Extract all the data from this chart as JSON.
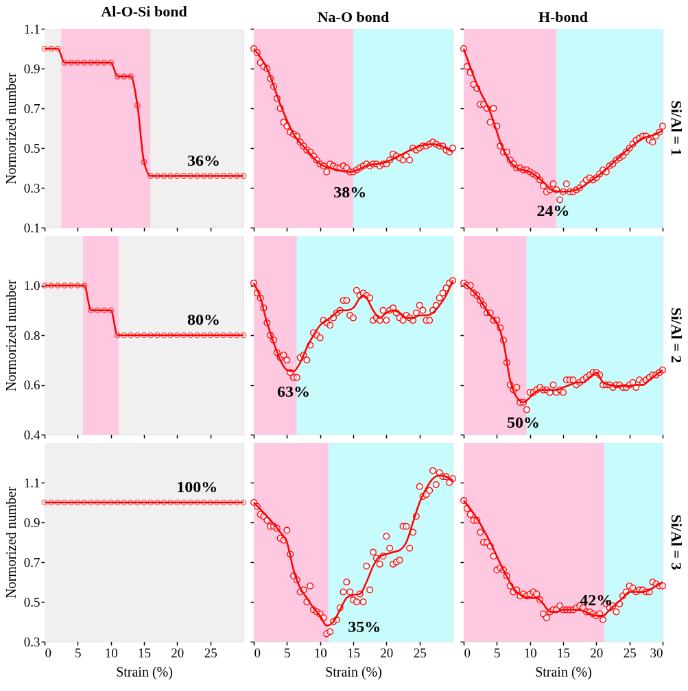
{
  "chart_data": [
    {
      "type": "line",
      "title": "Al-O-Si bond",
      "ylabel": "Normorized number",
      "tick_labels": "y",
      "xlim": [
        0,
        30
      ],
      "ylim": [
        0.1,
        1.1
      ],
      "xticks": [
        0,
        5,
        10,
        15,
        20,
        25
      ],
      "yticks": [
        0.1,
        0.3,
        0.5,
        0.7,
        0.9,
        1.1
      ],
      "bands": [
        {
          "axis": "x",
          "from": 0,
          "to": 2.5,
          "color": "#f0f0f0"
        },
        {
          "axis": "x",
          "from": 2.5,
          "to": 16,
          "color": "#ffc8e1"
        },
        {
          "axis": "x",
          "from": 16,
          "to": 30,
          "color": "#f0f0f0"
        }
      ],
      "x": [
        0,
        1,
        2,
        3,
        4,
        5,
        6,
        7,
        8,
        9,
        10,
        11,
        12,
        13,
        14,
        15,
        16,
        17,
        18,
        19,
        20,
        21,
        22,
        23,
        24,
        25,
        26,
        27,
        28,
        29,
        30
      ],
      "series": [
        {
          "color": "#ff0000",
          "marker": "circle",
          "values": [
            1.0,
            1.0,
            1.0,
            0.93,
            0.93,
            0.93,
            0.93,
            0.93,
            0.93,
            0.93,
            0.93,
            0.86,
            0.86,
            0.86,
            0.715,
            0.43,
            0.36,
            0.36,
            0.36,
            0.36,
            0.36,
            0.36,
            0.36,
            0.36,
            0.36,
            0.36,
            0.36,
            0.36,
            0.36,
            0.36,
            0.36
          ]
        }
      ],
      "annotations": [
        {
          "text": "36%",
          "x": 24,
          "y": 0.36
        }
      ]
    },
    {
      "type": "line",
      "title": "Na-O bond",
      "tick_labels": false,
      "xlim": [
        0,
        30
      ],
      "ylim": [
        0.1,
        1.1
      ],
      "xticks": [
        0,
        5,
        10,
        15,
        20,
        25
      ],
      "yticks": [
        0.1,
        0.3,
        0.5,
        0.7,
        0.9,
        1.1
      ],
      "bands": [
        {
          "axis": "x",
          "from": 0,
          "to": 15,
          "color": "#ffc8e1"
        },
        {
          "axis": "x",
          "from": 15,
          "to": 30,
          "color": "#c8fcfc"
        }
      ],
      "x": [
        0,
        0.5,
        1,
        1.5,
        2,
        2.5,
        3,
        3.5,
        4,
        4.5,
        5,
        5.5,
        6,
        6.5,
        7,
        7.5,
        8,
        8.5,
        9,
        9.5,
        10,
        10.5,
        11,
        11.5,
        12,
        12.5,
        13,
        13.5,
        14,
        14.5,
        15,
        15.5,
        16,
        16.5,
        17,
        17.5,
        18,
        18.5,
        19,
        19.5,
        20,
        20.5,
        21,
        21.5,
        22,
        22.5,
        23,
        23.5,
        24,
        24.5,
        25,
        25.5,
        26,
        26.5,
        27,
        27.5,
        28,
        28.5,
        29,
        29.5,
        30
      ],
      "series": [
        {
          "type": "scatter",
          "color": "#ff0000",
          "marker": "circle",
          "values": [
            1.0,
            0.98,
            0.93,
            0.91,
            0.9,
            0.85,
            0.81,
            0.75,
            0.7,
            0.63,
            0.61,
            0.58,
            0.57,
            0.56,
            0.53,
            0.51,
            0.49,
            0.48,
            0.46,
            0.44,
            0.42,
            0.41,
            0.38,
            0.42,
            0.41,
            0.4,
            0.4,
            0.41,
            0.4,
            0.38,
            0.38,
            0.39,
            0.4,
            0.41,
            0.42,
            0.41,
            0.42,
            0.42,
            0.41,
            0.42,
            0.42,
            0.44,
            0.47,
            0.46,
            0.45,
            0.44,
            0.46,
            0.44,
            0.5,
            0.49,
            0.5,
            0.51,
            0.51,
            0.52,
            0.53,
            0.52,
            0.51,
            0.51,
            0.49,
            0.48,
            0.5
          ]
        },
        {
          "color": "#ff0000",
          "x": [
            0,
            2,
            4,
            6,
            8,
            10,
            12,
            14.5,
            17,
            20,
            23,
            25,
            27,
            30
          ],
          "values": [
            1.0,
            0.9,
            0.72,
            0.57,
            0.49,
            0.42,
            0.395,
            0.38,
            0.41,
            0.43,
            0.48,
            0.51,
            0.52,
            0.48
          ]
        }
      ],
      "annotations": [
        {
          "text": "38%",
          "x": 14.5,
          "y": 0.38
        }
      ]
    },
    {
      "type": "line",
      "title": "H-bond",
      "tick_labels": false,
      "xlim": [
        0,
        30
      ],
      "ylim": [
        0.1,
        1.1
      ],
      "xticks": [
        0,
        5,
        10,
        15,
        20,
        25,
        30
      ],
      "yticks": [
        0.1,
        0.3,
        0.5,
        0.7,
        0.9,
        1.1
      ],
      "bands": [
        {
          "axis": "x",
          "from": 0,
          "to": 14,
          "color": "#ffc8e1"
        },
        {
          "axis": "x",
          "from": 14,
          "to": 30,
          "color": "#c8fcfc"
        }
      ],
      "x": [
        0,
        0.5,
        1,
        1.5,
        2,
        2.5,
        3,
        3.5,
        4,
        4.5,
        5,
        5.5,
        6,
        6.5,
        7,
        7.5,
        8,
        8.5,
        9,
        9.5,
        10,
        10.5,
        11,
        11.5,
        12,
        12.5,
        13,
        13.5,
        14,
        14.5,
        15,
        15.5,
        16,
        16.5,
        17,
        17.5,
        18,
        18.5,
        19,
        19.5,
        20,
        20.5,
        21,
        21.5,
        22,
        22.5,
        23,
        23.5,
        24,
        24.5,
        25,
        25.5,
        26,
        26.5,
        27,
        27.5,
        28,
        28.5,
        29,
        29.5,
        30
      ],
      "series": [
        {
          "type": "scatter",
          "color": "#ff0000",
          "marker": "circle",
          "values": [
            1.0,
            0.91,
            0.88,
            0.82,
            0.8,
            0.72,
            0.72,
            0.7,
            0.63,
            0.7,
            0.61,
            0.51,
            0.48,
            0.48,
            0.44,
            0.42,
            0.4,
            0.4,
            0.39,
            0.39,
            0.38,
            0.37,
            0.36,
            0.34,
            0.31,
            0.28,
            0.29,
            0.32,
            0.29,
            0.24,
            0.28,
            0.32,
            0.28,
            0.28,
            0.29,
            0.3,
            0.32,
            0.34,
            0.35,
            0.34,
            0.35,
            0.37,
            0.39,
            0.38,
            0.41,
            0.42,
            0.44,
            0.45,
            0.46,
            0.48,
            0.5,
            0.52,
            0.54,
            0.55,
            0.56,
            0.56,
            0.54,
            0.53,
            0.56,
            0.58,
            0.61
          ]
        },
        {
          "color": "#ff0000",
          "x": [
            0,
            2,
            4,
            6,
            8,
            10,
            12,
            13.5,
            15,
            17,
            19,
            21,
            23,
            25,
            27,
            29,
            30
          ],
          "values": [
            1.0,
            0.82,
            0.68,
            0.49,
            0.4,
            0.38,
            0.33,
            0.285,
            0.28,
            0.29,
            0.33,
            0.38,
            0.44,
            0.5,
            0.55,
            0.57,
            0.59
          ]
        }
      ],
      "annotations": [
        {
          "text": "24%",
          "x": 13.5,
          "y": 0.285
        },
        "Si/Al = 1"
      ]
    },
    {
      "type": "line",
      "ylabel": "Normorized number",
      "tick_labels": "y",
      "xlim": [
        0,
        30
      ],
      "ylim": [
        0.4,
        1.2
      ],
      "xticks": [
        0,
        5,
        10,
        15,
        20,
        25
      ],
      "yticks": [
        0.4,
        0.6,
        0.8,
        {
          "value": 1.0,
          "label": "1.0"
        }
      ],
      "bands": [
        {
          "axis": "x",
          "from": 0,
          "to": 5.8,
          "color": "#f0f0f0"
        },
        {
          "axis": "x",
          "from": 5.8,
          "to": 11.2,
          "color": "#ffc8e1"
        },
        {
          "axis": "x",
          "from": 11.2,
          "to": 30,
          "color": "#f0f0f0"
        }
      ],
      "x": [
        0,
        1,
        2,
        3,
        4,
        5,
        6,
        7,
        8,
        9,
        10,
        11,
        12,
        13,
        14,
        15,
        16,
        17,
        18,
        19,
        20,
        21,
        22,
        23,
        24,
        25,
        26,
        27,
        28,
        29,
        30
      ],
      "series": [
        {
          "color": "#ff0000",
          "marker": "circle",
          "values": [
            1.0,
            1.0,
            1.0,
            1.0,
            1.0,
            1.0,
            1.0,
            0.9,
            0.9,
            0.9,
            0.9,
            0.8,
            0.8,
            0.8,
            0.8,
            0.8,
            0.8,
            0.8,
            0.8,
            0.8,
            0.8,
            0.8,
            0.8,
            0.8,
            0.8,
            0.8,
            0.8,
            0.8,
            0.8,
            0.8,
            0.8
          ]
        }
      ],
      "annotations": [
        {
          "text": "80%",
          "x": 24,
          "y": 0.8
        }
      ]
    },
    {
      "type": "line",
      "tick_labels": false,
      "xlim": [
        0,
        30
      ],
      "ylim": [
        0.4,
        1.2
      ],
      "xticks": [
        0,
        5,
        10,
        15,
        20,
        25
      ],
      "yticks": [
        0.4,
        0.6,
        0.8,
        1.0
      ],
      "bands": [
        {
          "axis": "x",
          "from": 0,
          "to": 6.5,
          "color": "#ffc8e1"
        },
        {
          "axis": "x",
          "from": 6.5,
          "to": 30,
          "color": "#c8fcfc"
        }
      ],
      "x": [
        0,
        0.5,
        1,
        1.5,
        2,
        2.5,
        3,
        3.5,
        4,
        4.5,
        5,
        5.5,
        6,
        6.5,
        7,
        7.5,
        8,
        8.5,
        9,
        9.5,
        10,
        10.5,
        11,
        11.5,
        12,
        12.5,
        13,
        13.5,
        14,
        14.5,
        15,
        15.5,
        16,
        16.5,
        17,
        17.5,
        18,
        18.5,
        19,
        19.5,
        20,
        20.5,
        21,
        21.5,
        22,
        22.5,
        23,
        23.5,
        24,
        24.5,
        25,
        25.5,
        26,
        26.5,
        27,
        27.5,
        28,
        28.5,
        29,
        29.5,
        30
      ],
      "series": [
        {
          "type": "scatter",
          "color": "#ff0000",
          "marker": "circle",
          "values": [
            1.01,
            0.97,
            0.95,
            0.91,
            0.85,
            0.8,
            0.78,
            0.73,
            0.71,
            0.72,
            0.7,
            0.65,
            0.63,
            0.63,
            0.71,
            0.72,
            0.7,
            0.76,
            0.81,
            0.8,
            0.79,
            0.86,
            0.85,
            0.84,
            0.87,
            0.89,
            0.9,
            0.94,
            0.94,
            0.88,
            0.87,
            0.98,
            0.96,
            0.97,
            0.96,
            0.95,
            0.86,
            0.87,
            0.86,
            0.9,
            0.86,
            0.9,
            0.91,
            0.89,
            0.87,
            0.86,
            0.88,
            0.87,
            0.86,
            0.89,
            0.92,
            0.9,
            0.86,
            0.86,
            0.9,
            0.92,
            0.95,
            0.97,
            0.99,
            1.01,
            1.02
          ]
        },
        {
          "color": "#ff0000",
          "x": [
            0,
            1,
            2,
            3,
            4,
            5,
            6,
            7,
            8,
            9,
            10,
            11,
            12,
            13,
            14,
            15,
            16,
            16.5,
            17,
            18,
            19,
            20,
            21,
            22,
            23,
            24,
            25,
            26,
            27,
            28,
            29,
            30
          ],
          "values": [
            1.01,
            0.95,
            0.85,
            0.77,
            0.7,
            0.66,
            0.655,
            0.69,
            0.75,
            0.8,
            0.84,
            0.86,
            0.88,
            0.9,
            0.9,
            0.91,
            0.95,
            0.96,
            0.95,
            0.9,
            0.87,
            0.89,
            0.9,
            0.89,
            0.87,
            0.87,
            0.88,
            0.88,
            0.89,
            0.92,
            0.96,
            1.02
          ]
        }
      ],
      "annotations": [
        {
          "text": "63%",
          "x": 6,
          "y": 0.655
        }
      ]
    },
    {
      "type": "line",
      "tick_labels": false,
      "xlim": [
        0,
        30
      ],
      "ylim": [
        0.4,
        1.2
      ],
      "xticks": [
        0,
        5,
        10,
        15,
        20,
        25,
        30
      ],
      "yticks": [
        0.4,
        0.6,
        0.8,
        1.0
      ],
      "bands": [
        {
          "axis": "x",
          "from": 0,
          "to": 9.5,
          "color": "#ffc8e1"
        },
        {
          "axis": "x",
          "from": 9.5,
          "to": 30,
          "color": "#c8fcfc"
        }
      ],
      "x": [
        0,
        0.5,
        1,
        1.5,
        2,
        2.5,
        3,
        3.5,
        4,
        4.5,
        5,
        5.5,
        6,
        6.5,
        7,
        7.5,
        8,
        8.5,
        9,
        9.5,
        10,
        10.5,
        11,
        11.5,
        12,
        12.5,
        13,
        13.5,
        14,
        14.5,
        15,
        15.5,
        16,
        16.5,
        17,
        17.5,
        18,
        18.5,
        19,
        19.5,
        20,
        20.5,
        21,
        21.5,
        22,
        22.5,
        23,
        23.5,
        24,
        24.5,
        25,
        25.5,
        26,
        26.5,
        27,
        27.5,
        28,
        28.5,
        29,
        29.5,
        30
      ],
      "series": [
        {
          "type": "scatter",
          "color": "#ff0000",
          "marker": "circle",
          "values": [
            1.01,
            1.0,
            1.0,
            0.97,
            0.96,
            0.94,
            0.92,
            0.89,
            0.89,
            0.86,
            0.86,
            0.83,
            0.78,
            0.69,
            0.6,
            0.58,
            0.59,
            0.53,
            0.53,
            0.5,
            0.57,
            0.57,
            0.58,
            0.59,
            0.58,
            0.58,
            0.57,
            0.6,
            0.57,
            0.58,
            0.57,
            0.62,
            0.62,
            0.62,
            0.6,
            0.61,
            0.62,
            0.63,
            0.64,
            0.65,
            0.65,
            0.64,
            0.6,
            0.6,
            0.6,
            0.59,
            0.6,
            0.6,
            0.59,
            0.59,
            0.6,
            0.61,
            0.59,
            0.62,
            0.61,
            0.62,
            0.63,
            0.64,
            0.64,
            0.65,
            0.66
          ]
        },
        {
          "color": "#ff0000",
          "x": [
            0,
            2,
            4,
            5,
            6,
            7,
            8,
            9,
            10,
            11,
            12,
            13,
            14,
            15,
            16,
            17,
            18,
            19,
            20,
            21,
            22,
            23,
            24,
            25,
            26,
            27,
            28,
            29,
            30
          ],
          "values": [
            1.01,
            0.96,
            0.88,
            0.85,
            0.77,
            0.62,
            0.55,
            0.53,
            0.55,
            0.575,
            0.58,
            0.58,
            0.58,
            0.59,
            0.6,
            0.61,
            0.61,
            0.63,
            0.65,
            0.61,
            0.6,
            0.595,
            0.595,
            0.595,
            0.6,
            0.6,
            0.62,
            0.64,
            0.66
          ]
        }
      ],
      "annotations": [
        {
          "text": "50%",
          "x": 9,
          "y": 0.53
        },
        "Si/Al = 2"
      ]
    },
    {
      "type": "line",
      "xlabel": "Strain (%)",
      "ylabel": "Normorized number",
      "xlim": [
        0,
        30
      ],
      "ylim": [
        0.3,
        1.3
      ],
      "xticks": [
        0,
        5,
        10,
        15,
        20,
        25
      ],
      "yticks": [
        0.3,
        0.5,
        0.7,
        0.9,
        1.1
      ],
      "bands": [
        {
          "axis": "x",
          "from": 0,
          "to": 30,
          "color": "#f0f0f0"
        }
      ],
      "x": [
        0,
        1,
        2,
        3,
        4,
        5,
        6,
        7,
        8,
        9,
        10,
        11,
        12,
        13,
        14,
        15,
        16,
        17,
        18,
        19,
        20,
        21,
        22,
        23,
        24,
        25,
        26,
        27,
        28,
        29,
        30
      ],
      "series": [
        {
          "color": "#ff0000",
          "marker": "circle",
          "values": [
            1.0,
            1.0,
            1.0,
            1.0,
            1.0,
            1.0,
            1.0,
            1.0,
            1.0,
            1.0,
            1.0,
            1.0,
            1.0,
            1.0,
            1.0,
            1.0,
            1.0,
            1.0,
            1.0,
            1.0,
            1.0,
            1.0,
            1.0,
            1.0,
            1.0,
            1.0,
            1.0,
            1.0,
            1.0,
            1.0,
            1.0
          ]
        }
      ],
      "annotations": [
        {
          "text": "100%",
          "x": 23,
          "y": 1.0
        }
      ]
    },
    {
      "type": "line",
      "xlabel": "Strain (%)",
      "tick_labels": "x",
      "xlim": [
        0,
        30
      ],
      "ylim": [
        0.3,
        1.3
      ],
      "xticks": [
        0,
        5,
        10,
        15,
        20,
        25
      ],
      "yticks": [
        0.3,
        0.5,
        0.7,
        0.9,
        1.1
      ],
      "bands": [
        {
          "axis": "x",
          "from": 0,
          "to": 11.3,
          "color": "#ffc8e1"
        },
        {
          "axis": "x",
          "from": 11.3,
          "to": 30,
          "color": "#c8fcfc"
        }
      ],
      "x": [
        0,
        0.5,
        1,
        1.5,
        2,
        2.5,
        3,
        3.5,
        4,
        4.5,
        5,
        5.5,
        6,
        6.5,
        7,
        7.5,
        8,
        8.5,
        9,
        9.5,
        10,
        10.5,
        11,
        11.5,
        12,
        12.5,
        13,
        13.5,
        14,
        14.5,
        15,
        15.5,
        16,
        16.5,
        17,
        17.5,
        18,
        18.5,
        19,
        19.5,
        20,
        20.5,
        21,
        21.5,
        22,
        22.5,
        23,
        23.5,
        24,
        24.5,
        25,
        25.5,
        26,
        26.5,
        27,
        27.5,
        28,
        28.5,
        29,
        29.5,
        30
      ],
      "series": [
        {
          "type": "scatter",
          "color": "#ff0000",
          "marker": "circle",
          "values": [
            1.0,
            0.98,
            0.94,
            0.93,
            0.91,
            0.88,
            0.88,
            0.87,
            0.82,
            0.81,
            0.86,
            0.74,
            0.63,
            0.61,
            0.55,
            0.56,
            0.5,
            0.58,
            0.46,
            0.45,
            0.44,
            0.42,
            0.34,
            0.35,
            0.4,
            0.41,
            0.47,
            0.55,
            0.6,
            0.55,
            0.51,
            0.5,
            0.54,
            0.5,
            0.68,
            0.56,
            0.75,
            0.72,
            0.69,
            0.73,
            0.83,
            0.77,
            0.69,
            0.7,
            0.71,
            0.88,
            0.88,
            0.77,
            0.85,
            0.93,
            1.08,
            1.03,
            1.04,
            1.06,
            1.16,
            1.09,
            1.15,
            1.13,
            1.13,
            1.1,
            1.12
          ]
        },
        {
          "color": "#ff0000",
          "x": [
            0,
            2,
            4,
            5,
            6,
            7,
            8,
            9,
            10,
            11,
            12,
            13,
            14,
            15,
            16,
            17,
            18,
            19,
            20,
            21,
            22,
            23,
            24,
            25,
            26,
            27,
            28,
            29,
            30
          ],
          "values": [
            1.0,
            0.93,
            0.85,
            0.8,
            0.66,
            0.57,
            0.52,
            0.47,
            0.43,
            0.38,
            0.4,
            0.46,
            0.52,
            0.535,
            0.54,
            0.6,
            0.68,
            0.73,
            0.74,
            0.75,
            0.76,
            0.8,
            0.9,
            1.0,
            1.07,
            1.12,
            1.135,
            1.13,
            1.11
          ]
        }
      ],
      "annotations": [
        {
          "text": "35%",
          "x": 11,
          "y": 0.38
        }
      ]
    },
    {
      "type": "line",
      "xlabel": "Strain (%)",
      "tick_labels": "x",
      "xlim": [
        0,
        30
      ],
      "ylim": [
        0.3,
        1.3
      ],
      "xticks": [
        0,
        5,
        10,
        15,
        20,
        25,
        30
      ],
      "yticks": [
        0.3,
        0.5,
        0.7,
        0.9,
        1.1
      ],
      "bands": [
        {
          "axis": "x",
          "from": 0,
          "to": 21.2,
          "color": "#ffc8e1"
        },
        {
          "axis": "x",
          "from": 21.2,
          "to": 30,
          "color": "#c8fcfc"
        }
      ],
      "x": [
        0,
        0.5,
        1,
        1.5,
        2,
        2.5,
        3,
        3.5,
        4,
        4.5,
        5,
        5.5,
        6,
        6.5,
        7,
        7.5,
        8,
        8.5,
        9,
        9.5,
        10,
        10.5,
        11,
        11.5,
        12,
        12.5,
        13,
        13.5,
        14,
        14.5,
        15,
        15.5,
        16,
        16.5,
        17,
        17.5,
        18,
        18.5,
        19,
        19.5,
        20,
        20.5,
        21,
        21.5,
        22,
        22.5,
        23,
        23.5,
        24,
        24.5,
        25,
        25.5,
        26,
        26.5,
        27,
        27.5,
        28,
        28.5,
        29,
        29.5,
        30
      ],
      "series": [
        {
          "type": "scatter",
          "color": "#ff0000",
          "marker": "circle",
          "values": [
            1.01,
            0.97,
            0.94,
            0.91,
            0.91,
            0.85,
            0.8,
            0.8,
            0.78,
            0.73,
            0.66,
            0.67,
            0.66,
            0.63,
            0.58,
            0.55,
            0.56,
            0.53,
            0.54,
            0.53,
            0.54,
            0.55,
            0.54,
            0.51,
            0.44,
            0.42,
            0.45,
            0.46,
            0.46,
            0.48,
            0.46,
            0.46,
            0.46,
            0.46,
            0.47,
            0.48,
            0.47,
            0.45,
            0.45,
            0.44,
            0.43,
            0.44,
            0.41,
            0.49,
            0.47,
            0.48,
            0.45,
            0.49,
            0.53,
            0.55,
            0.58,
            0.57,
            0.55,
            0.56,
            0.56,
            0.55,
            0.55,
            0.6,
            0.59,
            0.58,
            0.58
          ]
        },
        {
          "color": "#ff0000",
          "x": [
            0,
            2,
            4,
            6,
            8,
            10,
            11,
            12,
            13,
            14,
            15,
            16,
            17,
            18,
            19,
            20,
            21,
            22,
            23,
            24,
            25,
            26,
            27,
            28,
            29,
            30
          ],
          "values": [
            1.01,
            0.92,
            0.8,
            0.66,
            0.55,
            0.52,
            0.52,
            0.49,
            0.45,
            0.45,
            0.46,
            0.46,
            0.46,
            0.455,
            0.44,
            0.43,
            0.43,
            0.46,
            0.49,
            0.52,
            0.55,
            0.55,
            0.55,
            0.56,
            0.58,
            0.6
          ]
        }
      ],
      "annotations": [
        {
          "text": "42%",
          "x": 20,
          "y": 0.43
        },
        "Si/Al = 3"
      ]
    }
  ]
}
